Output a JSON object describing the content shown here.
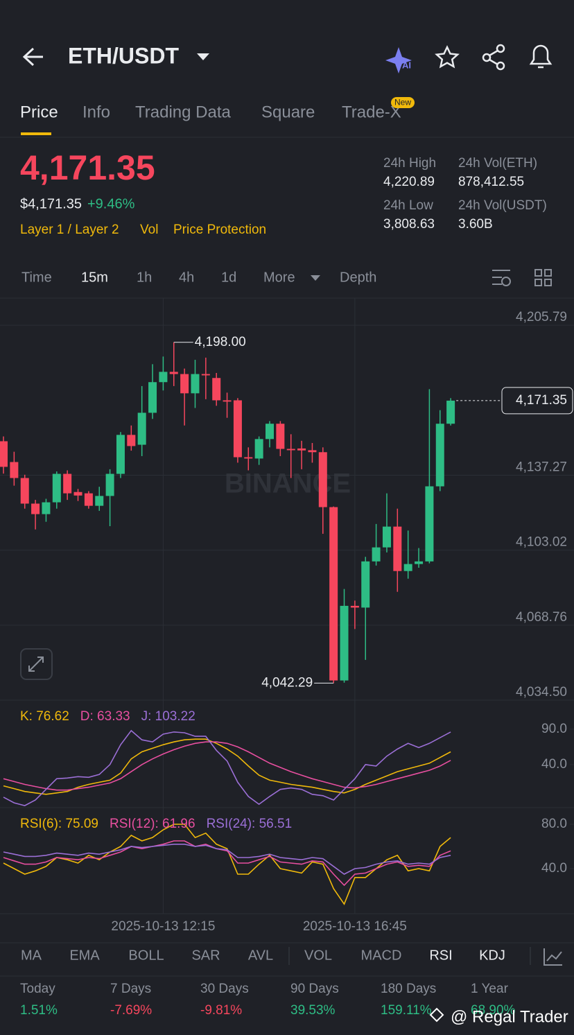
{
  "header": {
    "pair": "ETH/USDT"
  },
  "tabs": [
    "Price",
    "Info",
    "Trading Data",
    "Square",
    "Trade-X"
  ],
  "tab_badge": "New",
  "price": {
    "last": "4,171.35",
    "usd": "$4,171.35",
    "change": "+9.46%",
    "tags": [
      "Layer 1 / Layer 2",
      "Vol",
      "Price Protection"
    ]
  },
  "stats": [
    {
      "label": "24h High",
      "value": "4,220.89"
    },
    {
      "label": "24h Vol(ETH)",
      "value": "878,412.55"
    },
    {
      "label": "24h Low",
      "value": "3,808.63"
    },
    {
      "label": "24h Vol(USDT)",
      "value": "3.60B"
    }
  ],
  "intervals": [
    "Time",
    "15m",
    "1h",
    "4h",
    "1d",
    "More",
    "Depth"
  ],
  "chart_data": [
    {
      "type": "candlestick",
      "watermark": "BINANCE",
      "up_color": "#2ebd85",
      "down_color": "#f6465d",
      "categories": [
        null,
        null,
        null,
        null,
        null,
        null,
        null,
        null,
        null,
        null,
        null,
        null,
        null,
        null,
        null,
        "2025-10-13 12:15",
        null,
        null,
        null,
        null,
        null,
        null,
        null,
        null,
        null,
        null,
        null,
        null,
        null,
        null,
        null,
        null,
        null,
        "2025-10-13 16:45",
        null,
        null,
        null,
        null,
        null,
        null,
        null,
        null,
        null
      ],
      "open": [
        4152.8,
        4143.3,
        4136.0,
        4124.3,
        4119.5,
        4124.9,
        4137.9,
        4129.6,
        4129.0,
        4123.3,
        4127.8,
        4137.9,
        4155.7,
        4151.2,
        4165.8,
        4179.8,
        4184.5,
        4183.5,
        4174.7,
        4183.5,
        4181.7,
        4171.5,
        4171.5,
        4145.5,
        4144.9,
        4153.8,
        4160.8,
        4149.3,
        4149.5,
        4148.7,
        4147.8,
        4122.7,
        4043.5,
        4077.6,
        4076.8,
        4097.9,
        4104.3,
        4113.8,
        4093.5,
        4096.7,
        4097.9,
        4132.2,
        4160.8
      ],
      "high": [
        4155.0,
        4148.0,
        4137.5,
        4126.0,
        4126.5,
        4139.0,
        4139.5,
        4131.0,
        4130.0,
        4132.0,
        4140.0,
        4157.0,
        4160.0,
        4178.0,
        4188.0,
        4191.5,
        4198.0,
        4186.0,
        4190.0,
        4191.0,
        4184.0,
        4175.0,
        4172.5,
        4150.0,
        4155.0,
        4162.0,
        4162.0,
        4156.0,
        4153.0,
        4152.0,
        4150.0,
        4123.0,
        4085.3,
        4080.0,
        4100.0,
        4115.0,
        4129.0,
        4122.0,
        4112.0,
        4104.0,
        4176.6,
        4167.0,
        4172.5
      ],
      "low": [
        4138.0,
        4132.5,
        4122.0,
        4112.5,
        4116.0,
        4122.0,
        4126.0,
        4125.5,
        4122.0,
        4121.0,
        4114.0,
        4136.0,
        4148.5,
        4146.0,
        4163.0,
        4176.0,
        4178.0,
        4160.0,
        4168.0,
        4172.0,
        4169.0,
        4163.5,
        4143.0,
        4139.5,
        4142.0,
        4150.0,
        4146.0,
        4136.0,
        4140.0,
        4143.0,
        4110.5,
        4042.29,
        4042.5,
        4067.0,
        4052.9,
        4096.0,
        4102.0,
        4084.0,
        4090.0,
        4095.0,
        4097.0,
        4130.0,
        4160.0
      ],
      "close": [
        4141.1,
        4136.0,
        4124.3,
        4119.5,
        4124.9,
        4137.9,
        4129.0,
        4128.0,
        4123.3,
        4127.8,
        4137.9,
        4155.7,
        4150.6,
        4165.8,
        4179.8,
        4184.5,
        4183.5,
        4174.7,
        4183.5,
        4182.9,
        4171.5,
        4170.9,
        4145.5,
        4144.9,
        4153.8,
        4160.8,
        4149.3,
        4148.7,
        4148.6,
        4147.8,
        4122.7,
        4043.5,
        4077.6,
        4076.8,
        4097.9,
        4104.3,
        4113.8,
        4093.5,
        4096.7,
        4097.9,
        4132.2,
        4160.8,
        4171.35
      ],
      "ylim": [
        4034.5,
        4218.2
      ],
      "yticks": [
        {
          "value": 4205.79,
          "label": "4,205.79"
        },
        {
          "value": 4137.27,
          "label": "4,137.27"
        },
        {
          "value": 4103.02,
          "label": "4,103.02"
        },
        {
          "value": 4068.76,
          "label": "4,068.76"
        },
        {
          "value": 4034.5,
          "label": "4,034.50"
        }
      ],
      "annotations": [
        {
          "value": 4198.0,
          "label": "4,198.00"
        },
        {
          "value": 4042.29,
          "label": "4,042.29"
        }
      ],
      "last_price": {
        "value": 4171.35,
        "label": "4,171.35"
      }
    },
    {
      "type": "line",
      "ylim": [
        -20.8,
        131
      ],
      "yticks": [
        {
          "value": 90,
          "label": "90.0"
        },
        {
          "value": 40,
          "label": "40.0"
        }
      ],
      "series": [
        {
          "name": "K: 76.62",
          "color": "#f0b90b",
          "values": [
            10,
            6,
            2,
            0,
            -2,
            0,
            2,
            8,
            12,
            15,
            18,
            28,
            48,
            58,
            63,
            68,
            72,
            75,
            76,
            76,
            70,
            62,
            52,
            38,
            25,
            18,
            15,
            12,
            10,
            8,
            5,
            2,
            0,
            5,
            12,
            18,
            24,
            30,
            34,
            38,
            42,
            50,
            58
          ]
        },
        {
          "name": "D: 63.33",
          "color": "#e84fa0",
          "values": [
            20,
            16,
            12,
            9,
            6,
            4,
            4,
            6,
            8,
            11,
            14,
            20,
            30,
            40,
            48,
            55,
            61,
            66,
            70,
            72,
            72,
            70,
            65,
            58,
            50,
            42,
            36,
            30,
            25,
            20,
            16,
            12,
            8,
            7,
            9,
            12,
            16,
            20,
            24,
            28,
            32,
            38,
            46
          ]
        },
        {
          "name": "J: 103.22",
          "color": "#9b6fd6",
          "values": [
            -6,
            -14,
            -18,
            -10,
            5,
            20,
            21,
            23,
            22,
            26,
            40,
            68,
            88,
            75,
            72,
            83,
            86,
            85,
            80,
            80,
            60,
            45,
            15,
            -5,
            -16,
            -5,
            5,
            7,
            5,
            -2,
            -4,
            -10,
            5,
            20,
            40,
            38,
            52,
            62,
            70,
            64,
            70,
            78,
            86
          ]
        }
      ]
    },
    {
      "type": "line",
      "ylim": [
        -0.6,
        95
      ],
      "yticks": [
        {
          "value": 80,
          "label": "80.0"
        },
        {
          "value": 40,
          "label": "40.0"
        }
      ],
      "series": [
        {
          "name": "RSI(6): 75.09",
          "color": "#f0b90b",
          "values": [
            45,
            40,
            35,
            38,
            42,
            50,
            48,
            45,
            52,
            48,
            55,
            60,
            70,
            65,
            68,
            75,
            80,
            80,
            68,
            72,
            62,
            58,
            35,
            35,
            44,
            52,
            40,
            38,
            36,
            46,
            44,
            22,
            8,
            32,
            32,
            40,
            48,
            52,
            38,
            40,
            38,
            60,
            68
          ]
        },
        {
          "name": "RSI(12): 61.96",
          "color": "#e84fa0",
          "values": [
            50,
            47,
            44,
            44,
            46,
            50,
            49,
            48,
            50,
            49,
            52,
            55,
            60,
            58,
            60,
            62,
            65,
            65,
            60,
            62,
            58,
            56,
            45,
            45,
            48,
            51,
            46,
            45,
            44,
            47,
            46,
            35,
            25,
            35,
            36,
            40,
            44,
            46,
            42,
            43,
            42,
            52,
            56
          ]
        },
        {
          "name": "RSI(24): 56.51",
          "color": "#9b6fd6",
          "values": [
            55,
            53,
            51,
            51,
            52,
            54,
            53,
            52,
            54,
            53,
            55,
            57,
            60,
            59,
            60,
            61,
            62,
            62,
            60,
            61,
            58,
            57,
            50,
            50,
            51,
            53,
            50,
            49,
            48,
            50,
            49,
            42,
            35,
            40,
            41,
            44,
            46,
            47,
            44,
            45,
            44,
            50,
            52
          ]
        }
      ]
    }
  ],
  "indicators": [
    "MA",
    "EMA",
    "BOLL",
    "SAR",
    "AVL",
    "VOL",
    "MACD",
    "RSI",
    "KDJ"
  ],
  "performance": [
    {
      "label": "Today",
      "value": "1.51%"
    },
    {
      "label": "7 Days",
      "value": "-7.69%"
    },
    {
      "label": "30 Days",
      "value": "-9.81%"
    },
    {
      "label": "90 Days",
      "value": "39.53%"
    },
    {
      "label": "180 Days",
      "value": "159.11%"
    },
    {
      "label": "1 Year",
      "value": "68.90%"
    }
  ],
  "watermark": "@ Regal Trader"
}
